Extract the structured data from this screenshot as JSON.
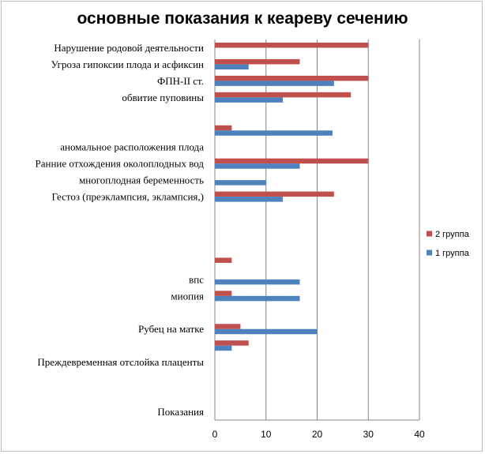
{
  "chart_data": {
    "type": "bar",
    "orientation": "horizontal",
    "title": "основные показания к кеареву сечению",
    "xlim": [
      0,
      40
    ],
    "x_ticks": [
      0,
      10,
      20,
      30,
      40
    ],
    "grid": true,
    "legend_position": "right",
    "categories": [
      "Нарушение родовой деятельности",
      "Угроза гипоксии плода и асфиксин",
      "ФПН-II ст.",
      "обвитие пуповины",
      "",
      "",
      "аномальное   расположения плода",
      "Ранние отхождения околоплодных вод",
      "многоплодная беременность",
      "Гестоз (преэклампсия, эклампсия,)",
      "",
      "",
      "",
      "",
      "впс",
      "миопия",
      "",
      "Рубец на матке",
      "",
      "Преждевременная отслойка плаценты",
      "",
      "",
      "Показания"
    ],
    "series": [
      {
        "name": "2 группа",
        "color": "#c0504d",
        "values": [
          30,
          16.6,
          30,
          26.6,
          null,
          3.3,
          null,
          30,
          null,
          23.3,
          null,
          null,
          null,
          3.3,
          null,
          3.3,
          null,
          5,
          6.6,
          null,
          null,
          null,
          null
        ]
      },
      {
        "name": "1 группа",
        "color": "#4f81bd",
        "values": [
          null,
          6.6,
          23.3,
          13.3,
          null,
          23,
          null,
          16.6,
          10,
          13.3,
          null,
          null,
          null,
          null,
          16.6,
          16.6,
          null,
          20,
          3.3,
          null,
          null,
          null,
          null
        ]
      }
    ],
    "legend": [
      {
        "label": "2 группа",
        "color": "#c0504d"
      },
      {
        "label": "1 группа",
        "color": "#4f81bd"
      }
    ]
  }
}
